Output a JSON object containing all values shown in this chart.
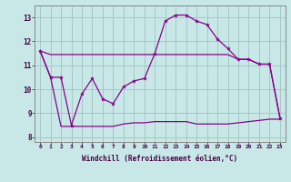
{
  "background_color": "#c8e8e8",
  "grid_color": "#a8c8c8",
  "line_color": "#880088",
  "x_label": "Windchill (Refroidissement éolien,°C)",
  "ylim": [
    7.8,
    13.5
  ],
  "xlim": [
    -0.5,
    23.5
  ],
  "yticks": [
    8,
    9,
    10,
    11,
    12,
    13
  ],
  "xticks": [
    0,
    1,
    2,
    3,
    4,
    5,
    6,
    7,
    8,
    9,
    10,
    11,
    12,
    13,
    14,
    15,
    16,
    17,
    18,
    19,
    20,
    21,
    22,
    23
  ],
  "series_main": [
    11.6,
    10.5,
    10.5,
    8.5,
    9.8,
    10.45,
    9.6,
    9.4,
    10.1,
    10.35,
    10.45,
    11.5,
    12.85,
    13.1,
    13.1,
    12.85,
    12.7,
    12.1,
    11.7,
    11.25,
    11.25,
    11.05,
    11.05,
    8.8
  ],
  "series_upper": [
    11.6,
    11.45,
    11.45,
    11.45,
    11.45,
    11.45,
    11.45,
    11.45,
    11.45,
    11.45,
    11.45,
    11.45,
    11.45,
    11.45,
    11.45,
    11.45,
    11.45,
    11.45,
    11.45,
    11.25,
    11.25,
    11.05,
    11.05,
    8.8
  ],
  "series_lower": [
    11.6,
    10.5,
    8.45,
    8.45,
    8.45,
    8.45,
    8.45,
    8.45,
    8.55,
    8.6,
    8.6,
    8.65,
    8.65,
    8.65,
    8.65,
    8.55,
    8.55,
    8.55,
    8.55,
    8.6,
    8.65,
    8.7,
    8.75,
    8.75
  ]
}
